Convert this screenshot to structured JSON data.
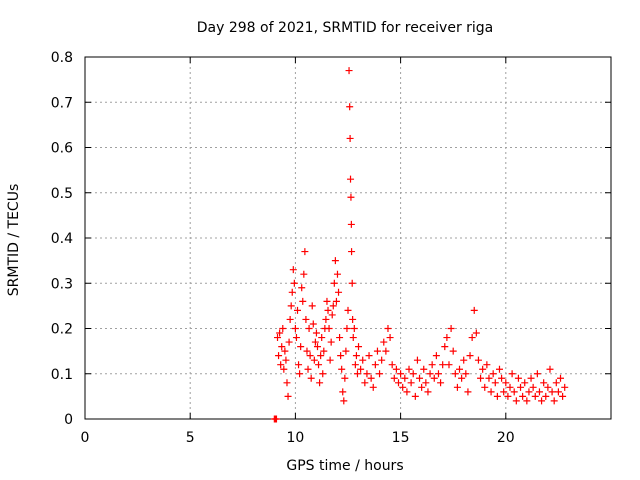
{
  "chart_data": {
    "type": "scatter",
    "title": "Day 298 of 2021, SRMTID for receiver riga",
    "xlabel": "GPS time / hours",
    "ylabel": "SRMTID / TECUs",
    "xlim": [
      0,
      25
    ],
    "ylim": [
      0,
      0.8
    ],
    "xticks": [
      0,
      5,
      10,
      15,
      20
    ],
    "yticks": [
      0,
      0.1,
      0.2,
      0.3,
      0.4,
      0.5,
      0.6,
      0.7,
      0.8
    ],
    "xtick_labels": [
      "0",
      "5",
      "10",
      "15",
      "20"
    ],
    "ytick_labels": [
      "0",
      "0.1",
      "0.2",
      "0.3",
      "0.4",
      "0.5",
      "0.6",
      "0.7",
      "0.8"
    ],
    "grid": true,
    "marker": "+",
    "color": "#ff0000",
    "series": [
      {
        "name": "SRMTID",
        "points": [
          [
            9.0,
            0.0
          ],
          [
            9.05,
            0.0
          ],
          [
            9.1,
            0.0
          ],
          [
            9.15,
            0.18
          ],
          [
            9.2,
            0.14
          ],
          [
            9.25,
            0.19
          ],
          [
            9.3,
            0.12
          ],
          [
            9.35,
            0.16
          ],
          [
            9.4,
            0.2
          ],
          [
            9.45,
            0.11
          ],
          [
            9.5,
            0.15
          ],
          [
            9.55,
            0.13
          ],
          [
            9.6,
            0.08
          ],
          [
            9.65,
            0.05
          ],
          [
            9.7,
            0.17
          ],
          [
            9.75,
            0.22
          ],
          [
            9.8,
            0.25
          ],
          [
            9.85,
            0.28
          ],
          [
            9.9,
            0.33
          ],
          [
            9.95,
            0.3
          ],
          [
            10.0,
            0.2
          ],
          [
            10.05,
            0.18
          ],
          [
            10.1,
            0.24
          ],
          [
            10.15,
            0.12
          ],
          [
            10.2,
            0.1
          ],
          [
            10.25,
            0.16
          ],
          [
            10.3,
            0.29
          ],
          [
            10.35,
            0.26
          ],
          [
            10.4,
            0.32
          ],
          [
            10.45,
            0.37
          ],
          [
            10.5,
            0.22
          ],
          [
            10.55,
            0.15
          ],
          [
            10.6,
            0.11
          ],
          [
            10.65,
            0.2
          ],
          [
            10.7,
            0.14
          ],
          [
            10.75,
            0.09
          ],
          [
            10.8,
            0.25
          ],
          [
            10.85,
            0.21
          ],
          [
            10.9,
            0.13
          ],
          [
            10.95,
            0.17
          ],
          [
            11.0,
            0.19
          ],
          [
            11.05,
            0.16
          ],
          [
            11.1,
            0.12
          ],
          [
            11.15,
            0.08
          ],
          [
            11.2,
            0.14
          ],
          [
            11.25,
            0.18
          ],
          [
            11.3,
            0.1
          ],
          [
            11.35,
            0.15
          ],
          [
            11.4,
            0.2
          ],
          [
            11.45,
            0.22
          ],
          [
            11.5,
            0.26
          ],
          [
            11.55,
            0.24
          ],
          [
            11.6,
            0.2
          ],
          [
            11.65,
            0.13
          ],
          [
            11.7,
            0.17
          ],
          [
            11.75,
            0.23
          ],
          [
            11.8,
            0.25
          ],
          [
            11.85,
            0.3
          ],
          [
            11.9,
            0.35
          ],
          [
            11.95,
            0.26
          ],
          [
            12.0,
            0.32
          ],
          [
            12.05,
            0.28
          ],
          [
            12.1,
            0.18
          ],
          [
            12.15,
            0.14
          ],
          [
            12.2,
            0.11
          ],
          [
            12.25,
            0.06
          ],
          [
            12.3,
            0.04
          ],
          [
            12.35,
            0.09
          ],
          [
            12.4,
            0.15
          ],
          [
            12.45,
            0.2
          ],
          [
            12.5,
            0.24
          ],
          [
            12.55,
            0.77
          ],
          [
            12.58,
            0.69
          ],
          [
            12.6,
            0.62
          ],
          [
            12.62,
            0.53
          ],
          [
            12.64,
            0.49
          ],
          [
            12.66,
            0.43
          ],
          [
            12.67,
            0.37
          ],
          [
            12.7,
            0.3
          ],
          [
            12.72,
            0.22
          ],
          [
            12.75,
            0.18
          ],
          [
            12.8,
            0.2
          ],
          [
            12.85,
            0.12
          ],
          [
            12.9,
            0.14
          ],
          [
            12.95,
            0.1
          ],
          [
            13.0,
            0.16
          ],
          [
            13.1,
            0.11
          ],
          [
            13.2,
            0.13
          ],
          [
            13.3,
            0.08
          ],
          [
            13.4,
            0.1
          ],
          [
            13.5,
            0.14
          ],
          [
            13.6,
            0.09
          ],
          [
            13.7,
            0.07
          ],
          [
            13.8,
            0.12
          ],
          [
            13.9,
            0.15
          ],
          [
            14.0,
            0.1
          ],
          [
            14.1,
            0.13
          ],
          [
            14.2,
            0.17
          ],
          [
            14.3,
            0.15
          ],
          [
            14.4,
            0.2
          ],
          [
            14.5,
            0.18
          ],
          [
            14.6,
            0.12
          ],
          [
            14.7,
            0.09
          ],
          [
            14.8,
            0.11
          ],
          [
            14.9,
            0.08
          ],
          [
            15.0,
            0.1
          ],
          [
            15.1,
            0.07
          ],
          [
            15.2,
            0.09
          ],
          [
            15.3,
            0.06
          ],
          [
            15.4,
            0.11
          ],
          [
            15.5,
            0.08
          ],
          [
            15.6,
            0.1
          ],
          [
            15.7,
            0.05
          ],
          [
            15.8,
            0.13
          ],
          [
            15.9,
            0.09
          ],
          [
            16.0,
            0.07
          ],
          [
            16.1,
            0.11
          ],
          [
            16.2,
            0.08
          ],
          [
            16.3,
            0.06
          ],
          [
            16.4,
            0.1
          ],
          [
            16.5,
            0.12
          ],
          [
            16.6,
            0.09
          ],
          [
            16.7,
            0.14
          ],
          [
            16.8,
            0.1
          ],
          [
            16.9,
            0.08
          ],
          [
            17.0,
            0.12
          ],
          [
            17.1,
            0.16
          ],
          [
            17.2,
            0.18
          ],
          [
            17.3,
            0.12
          ],
          [
            17.4,
            0.2
          ],
          [
            17.5,
            0.15
          ],
          [
            17.6,
            0.1
          ],
          [
            17.7,
            0.07
          ],
          [
            17.8,
            0.11
          ],
          [
            17.9,
            0.09
          ],
          [
            18.0,
            0.13
          ],
          [
            18.1,
            0.1
          ],
          [
            18.2,
            0.06
          ],
          [
            18.3,
            0.14
          ],
          [
            18.4,
            0.18
          ],
          [
            18.5,
            0.24
          ],
          [
            18.6,
            0.19
          ],
          [
            18.7,
            0.13
          ],
          [
            18.8,
            0.09
          ],
          [
            18.9,
            0.11
          ],
          [
            19.0,
            0.07
          ],
          [
            19.1,
            0.12
          ],
          [
            19.2,
            0.09
          ],
          [
            19.3,
            0.06
          ],
          [
            19.4,
            0.1
          ],
          [
            19.5,
            0.08
          ],
          [
            19.6,
            0.05
          ],
          [
            19.7,
            0.11
          ],
          [
            19.8,
            0.09
          ],
          [
            19.9,
            0.06
          ],
          [
            20.0,
            0.08
          ],
          [
            20.1,
            0.05
          ],
          [
            20.2,
            0.07
          ],
          [
            20.3,
            0.1
          ],
          [
            20.4,
            0.06
          ],
          [
            20.5,
            0.04
          ],
          [
            20.6,
            0.09
          ],
          [
            20.7,
            0.07
          ],
          [
            20.8,
            0.05
          ],
          [
            20.9,
            0.08
          ],
          [
            21.0,
            0.04
          ],
          [
            21.1,
            0.06
          ],
          [
            21.2,
            0.09
          ],
          [
            21.3,
            0.07
          ],
          [
            21.4,
            0.05
          ],
          [
            21.5,
            0.1
          ],
          [
            21.6,
            0.06
          ],
          [
            21.7,
            0.04
          ],
          [
            21.8,
            0.08
          ],
          [
            21.9,
            0.05
          ],
          [
            22.0,
            0.07
          ],
          [
            22.1,
            0.11
          ],
          [
            22.2,
            0.06
          ],
          [
            22.3,
            0.04
          ],
          [
            22.4,
            0.08
          ],
          [
            22.5,
            0.06
          ],
          [
            22.6,
            0.09
          ],
          [
            22.7,
            0.05
          ],
          [
            22.8,
            0.07
          ]
        ]
      }
    ]
  }
}
